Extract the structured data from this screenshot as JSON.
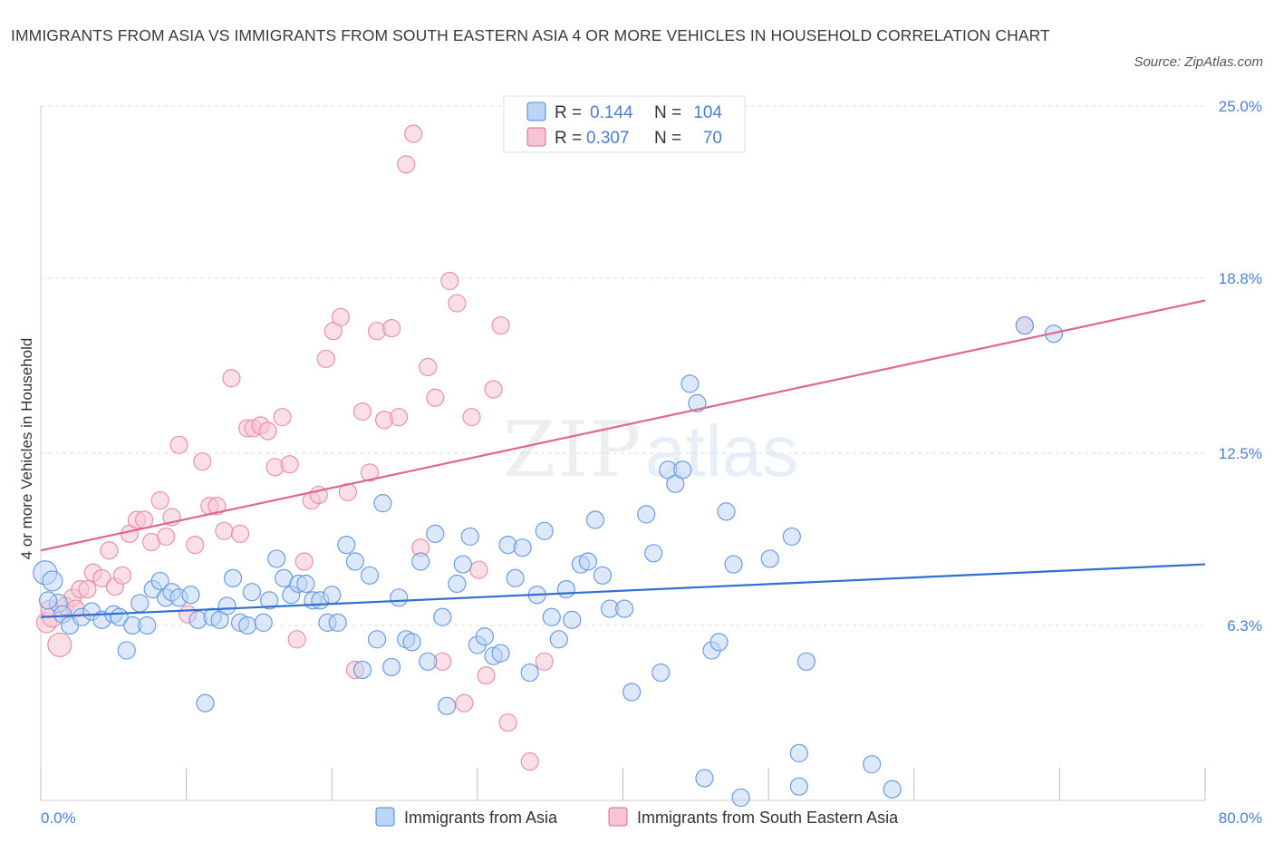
{
  "title": "IMMIGRANTS FROM ASIA VS IMMIGRANTS FROM SOUTH EASTERN ASIA 4 OR MORE VEHICLES IN HOUSEHOLD CORRELATION CHART",
  "source": "Source: ZipAtlas.com",
  "colors": {
    "blue": "#4a86d8",
    "blue_fill": "#bcd4f5",
    "pink": "#e06690",
    "pink_fill": "#f6c4d4",
    "axis_label": "#4a7fd0"
  },
  "legend_top": {
    "rows": [
      {
        "r_label": "R =",
        "r_value": "0.144",
        "n_label": "N =",
        "n_value": "104"
      },
      {
        "r_label": "R =",
        "r_value": "0.307",
        "n_label": "N =",
        "n_value": "70"
      }
    ]
  },
  "chart_data": {
    "type": "scatter",
    "title": "IMMIGRANTS FROM ASIA VS IMMIGRANTS FROM SOUTH EASTERN ASIA 4 OR MORE VEHICLES IN HOUSEHOLD CORRELATION CHART",
    "xlabel": "",
    "ylabel": "4 or more Vehicles in Household",
    "xlim": [
      0,
      80
    ],
    "ylim": [
      0,
      25
    ],
    "x_tick_labels": [
      "0.0%",
      "80.0%"
    ],
    "y_ticks": [
      6.3,
      12.5,
      18.8,
      25.0
    ],
    "y_tick_labels": [
      "6.3%",
      "12.5%",
      "18.8%",
      "25.0%"
    ],
    "grid": true,
    "legend_placement": "bottom",
    "watermark": "ZIPatlas",
    "series": [
      {
        "name": "Immigrants from Asia",
        "color": "#4a86d8",
        "trend": {
          "x": [
            0,
            80
          ],
          "y": [
            6.6,
            8.5
          ]
        },
        "points": [
          [
            0.3,
            8.2
          ],
          [
            0.8,
            7.9
          ],
          [
            1.2,
            7.1
          ],
          [
            1.5,
            6.7
          ],
          [
            2.0,
            6.3
          ],
          [
            2.8,
            6.6
          ],
          [
            3.5,
            6.8
          ],
          [
            4.2,
            6.5
          ],
          [
            5.0,
            6.7
          ],
          [
            5.4,
            6.6
          ],
          [
            5.9,
            5.4
          ],
          [
            6.3,
            6.3
          ],
          [
            6.8,
            7.1
          ],
          [
            7.3,
            6.3
          ],
          [
            7.7,
            7.6
          ],
          [
            8.2,
            7.9
          ],
          [
            8.6,
            7.3
          ],
          [
            9.0,
            7.5
          ],
          [
            9.5,
            7.3
          ],
          [
            10.3,
            7.4
          ],
          [
            10.8,
            6.5
          ],
          [
            11.3,
            3.5
          ],
          [
            11.8,
            6.6
          ],
          [
            12.3,
            6.5
          ],
          [
            12.8,
            7.0
          ],
          [
            13.2,
            8.0
          ],
          [
            13.7,
            6.4
          ],
          [
            14.2,
            6.3
          ],
          [
            14.5,
            7.5
          ],
          [
            15.3,
            6.4
          ],
          [
            15.7,
            7.2
          ],
          [
            16.2,
            8.7
          ],
          [
            16.7,
            8.0
          ],
          [
            17.2,
            7.4
          ],
          [
            17.7,
            7.8
          ],
          [
            18.2,
            7.8
          ],
          [
            18.7,
            7.2
          ],
          [
            19.2,
            7.2
          ],
          [
            19.7,
            6.4
          ],
          [
            20.0,
            7.4
          ],
          [
            20.4,
            6.4
          ],
          [
            21.0,
            9.2
          ],
          [
            21.6,
            8.6
          ],
          [
            22.1,
            4.7
          ],
          [
            22.6,
            8.1
          ],
          [
            23.1,
            5.8
          ],
          [
            23.5,
            10.7
          ],
          [
            24.1,
            4.8
          ],
          [
            24.6,
            7.3
          ],
          [
            25.1,
            5.8
          ],
          [
            25.5,
            5.7
          ],
          [
            26.1,
            8.6
          ],
          [
            26.6,
            5.0
          ],
          [
            27.1,
            9.6
          ],
          [
            27.6,
            6.6
          ],
          [
            27.9,
            3.4
          ],
          [
            28.6,
            7.8
          ],
          [
            29.0,
            8.5
          ],
          [
            29.5,
            9.5
          ],
          [
            30.0,
            5.6
          ],
          [
            30.5,
            5.9
          ],
          [
            31.1,
            5.2
          ],
          [
            31.6,
            5.3
          ],
          [
            32.1,
            9.2
          ],
          [
            32.6,
            8.0
          ],
          [
            33.1,
            9.1
          ],
          [
            33.6,
            4.6
          ],
          [
            34.1,
            7.4
          ],
          [
            34.6,
            9.7
          ],
          [
            35.1,
            6.6
          ],
          [
            35.6,
            5.8
          ],
          [
            36.1,
            7.6
          ],
          [
            36.5,
            6.5
          ],
          [
            37.1,
            8.5
          ],
          [
            37.6,
            8.6
          ],
          [
            38.1,
            10.1
          ],
          [
            38.6,
            8.1
          ],
          [
            39.1,
            6.9
          ],
          [
            40.1,
            6.9
          ],
          [
            40.6,
            3.9
          ],
          [
            41.6,
            10.3
          ],
          [
            42.1,
            8.9
          ],
          [
            42.6,
            4.6
          ],
          [
            43.1,
            11.9
          ],
          [
            43.6,
            11.4
          ],
          [
            44.1,
            11.9
          ],
          [
            44.6,
            15.0
          ],
          [
            45.1,
            14.3
          ],
          [
            45.6,
            0.8
          ],
          [
            46.1,
            5.4
          ],
          [
            46.6,
            5.7
          ],
          [
            47.1,
            10.4
          ],
          [
            47.6,
            8.5
          ],
          [
            48.1,
            0.1
          ],
          [
            50.1,
            8.7
          ],
          [
            51.6,
            9.5
          ],
          [
            52.1,
            1.7
          ],
          [
            52.6,
            5.0
          ],
          [
            52.1,
            0.5
          ],
          [
            57.1,
            1.3
          ],
          [
            58.5,
            0.4
          ],
          [
            67.6,
            17.1
          ],
          [
            69.6,
            16.8
          ],
          [
            0.5,
            7.2
          ]
        ],
        "sizes": [
          26,
          22,
          20,
          18,
          16,
          16,
          14,
          14,
          12,
          12
        ]
      },
      {
        "name": "Immigrants from South Eastern Asia",
        "color": "#e06690",
        "trend": {
          "x": [
            0,
            80
          ],
          "y": [
            9.0,
            18.0
          ]
        },
        "points": [
          [
            0.4,
            6.4
          ],
          [
            0.8,
            6.6
          ],
          [
            1.3,
            5.6
          ],
          [
            1.7,
            7.0
          ],
          [
            2.2,
            7.3
          ],
          [
            2.7,
            7.6
          ],
          [
            3.2,
            7.6
          ],
          [
            3.6,
            8.2
          ],
          [
            4.2,
            8.0
          ],
          [
            4.7,
            9.0
          ],
          [
            5.1,
            7.7
          ],
          [
            5.6,
            8.1
          ],
          [
            6.1,
            9.6
          ],
          [
            6.6,
            10.1
          ],
          [
            7.1,
            10.1
          ],
          [
            7.6,
            9.3
          ],
          [
            8.2,
            10.8
          ],
          [
            8.6,
            9.5
          ],
          [
            9.0,
            10.2
          ],
          [
            9.5,
            12.8
          ],
          [
            10.1,
            6.7
          ],
          [
            10.6,
            9.2
          ],
          [
            11.1,
            12.2
          ],
          [
            11.6,
            10.6
          ],
          [
            12.1,
            10.6
          ],
          [
            12.6,
            9.7
          ],
          [
            13.1,
            15.2
          ],
          [
            13.7,
            9.6
          ],
          [
            14.2,
            13.4
          ],
          [
            14.6,
            13.4
          ],
          [
            15.1,
            13.5
          ],
          [
            15.6,
            13.3
          ],
          [
            16.1,
            12.0
          ],
          [
            16.6,
            13.8
          ],
          [
            17.1,
            12.1
          ],
          [
            17.6,
            5.8
          ],
          [
            18.1,
            8.6
          ],
          [
            18.6,
            10.8
          ],
          [
            19.1,
            11.0
          ],
          [
            19.6,
            15.9
          ],
          [
            20.1,
            16.9
          ],
          [
            20.6,
            17.4
          ],
          [
            21.1,
            11.1
          ],
          [
            21.6,
            4.7
          ],
          [
            22.1,
            14.0
          ],
          [
            22.6,
            11.8
          ],
          [
            23.1,
            16.9
          ],
          [
            23.6,
            13.7
          ],
          [
            24.1,
            17.0
          ],
          [
            24.6,
            13.8
          ],
          [
            25.1,
            22.9
          ],
          [
            25.6,
            24.0
          ],
          [
            26.1,
            9.1
          ],
          [
            26.6,
            15.6
          ],
          [
            27.1,
            14.5
          ],
          [
            27.6,
            5.0
          ],
          [
            28.1,
            18.7
          ],
          [
            28.6,
            17.9
          ],
          [
            29.1,
            3.5
          ],
          [
            29.6,
            13.8
          ],
          [
            30.1,
            8.3
          ],
          [
            30.6,
            4.5
          ],
          [
            31.1,
            14.8
          ],
          [
            31.6,
            17.1
          ],
          [
            32.1,
            2.8
          ],
          [
            33.6,
            1.4
          ],
          [
            34.6,
            5.0
          ],
          [
            67.6,
            17.1
          ],
          [
            0.6,
            6.9
          ],
          [
            2.4,
            6.9
          ]
        ]
      }
    ]
  },
  "bottom_legend": {
    "items": [
      "Immigrants from Asia",
      "Immigrants from South Eastern Asia"
    ]
  }
}
